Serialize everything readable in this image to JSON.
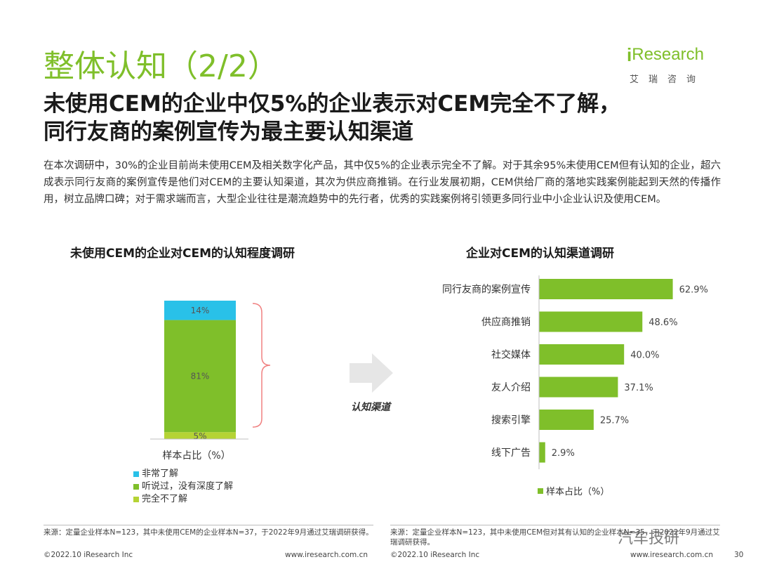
{
  "section_title": "整体认知（2/2）",
  "logo": {
    "i": "i",
    "research": "Research",
    "cn": "艾瑞咨询"
  },
  "headline": {
    "line1": "未使用CEM的企业中仅5%的企业表示对CEM完全不了解，",
    "line2": "同行友商的案例宣传为最主要认知渠道"
  },
  "body": "在本次调研中，30%的企业目前尚未使用CEM及相关数字化产品，其中仅5%的企业表示完全不了解。对于其余95%未使用CEM但有认知的企业，超六成表示同行友商的案例宣传是他们对CEM的主要认知渠道，其次为供应商推销。在行业发展初期，CEM供给厂商的落地实践案例能起到天然的传播作用，树立品牌口碑；对于需求端而言，大型企业往往是潮流趋势中的先行者，优秀的实践案例将引领更多同行业中小企业认识及使用CEM。",
  "arrow_label": "认知渠道",
  "chart_data": [
    {
      "type": "bar",
      "title": "未使用CEM的企业对CEM的认知程度调研",
      "categories": [
        "样本占比（%）"
      ],
      "series": [
        {
          "name": "完全不了解",
          "values": [
            5
          ],
          "label": "5%",
          "color": "#b5d334"
        },
        {
          "name": "听说过，没有深度了解",
          "values": [
            81
          ],
          "label": "81%",
          "color": "#7fbf2a"
        },
        {
          "name": "非常了解",
          "values": [
            14
          ],
          "label": "14%",
          "color": "#29c1e8"
        }
      ],
      "stacked": true,
      "ylim": [
        0,
        100
      ]
    },
    {
      "type": "bar",
      "orientation": "horizontal",
      "title": "企业对CEM的认知渠道调研",
      "categories": [
        "同行友商的案例宣传",
        "供应商推销",
        "社交媒体",
        "友人介绍",
        "搜索引擎",
        "线下广告"
      ],
      "series": [
        {
          "name": "样本占比（%）",
          "values": [
            62.9,
            48.6,
            40.0,
            37.1,
            25.7,
            2.9
          ],
          "labels": [
            "62.9%",
            "48.6%",
            "40.0%",
            "37.1%",
            "25.7%",
            "2.9%"
          ],
          "color": "#7fbf2a"
        }
      ],
      "xlim": [
        0,
        70
      ]
    }
  ],
  "legend_left": [
    {
      "name": "非常了解",
      "color": "#29c1e8"
    },
    {
      "name": "听说过，没有深度了解",
      "color": "#7fbf2a"
    },
    {
      "name": "完全不了解",
      "color": "#b5d334"
    }
  ],
  "legend_right": {
    "name": "样本占比（%）",
    "color": "#7fbf2a"
  },
  "source_left": "来源：定量企业样本N=123，其中未使用CEM的企业样本N=37，于2022年9月通过艾瑞调研获得。",
  "source_right": "来源：定量企业样本N=123，其中未使用CEM但对其有认知的企业样本N=35，于2022年9月通过艾瑞调研获得。",
  "footer": {
    "copyright_left": "©2022.10 iResearch Inc",
    "web_left": "www.iresearch.com.cn",
    "copyright_right": "©2022.10 iResearch Inc",
    "web_right": "www.iresearch.com.cn",
    "page": "30"
  },
  "watermark": "汽车技研"
}
